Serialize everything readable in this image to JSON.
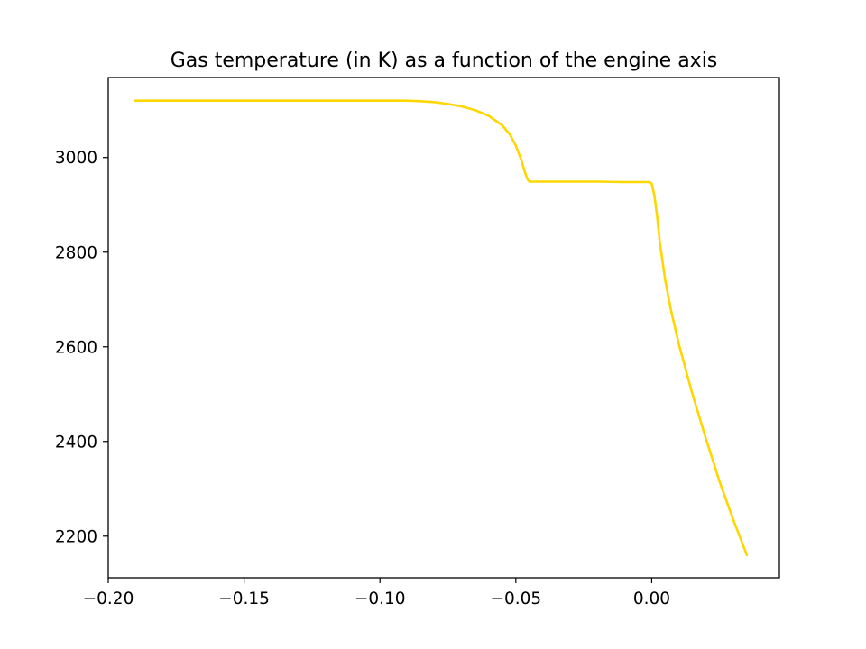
{
  "chart_data": {
    "type": "line",
    "title": "Gas temperature (in K) as a function of the engine axis",
    "xlabel": "",
    "ylabel": "",
    "xlim": [
      -0.2,
      0.047
    ],
    "ylim": [
      2112,
      3169
    ],
    "grid": false,
    "xticks": [
      {
        "value": -0.2,
        "label": "−0.20"
      },
      {
        "value": -0.15,
        "label": "−0.15"
      },
      {
        "value": -0.1,
        "label": "−0.10"
      },
      {
        "value": -0.05,
        "label": "−0.05"
      },
      {
        "value": 0.0,
        "label": "0.00"
      }
    ],
    "yticks": [
      {
        "value": 2200,
        "label": "2200"
      },
      {
        "value": 2400,
        "label": "2400"
      },
      {
        "value": 2600,
        "label": "2600"
      },
      {
        "value": 2800,
        "label": "2800"
      },
      {
        "value": 3000,
        "label": "3000"
      }
    ],
    "series": [
      {
        "color": "#FFD700",
        "x": [
          -0.19,
          -0.15,
          -0.12,
          -0.1,
          -0.09,
          -0.085,
          -0.08,
          -0.075,
          -0.07,
          -0.065,
          -0.06,
          -0.055,
          -0.052,
          -0.05,
          -0.048,
          -0.047,
          -0.046,
          -0.0455,
          -0.045,
          -0.044,
          -0.03,
          -0.02,
          -0.01,
          -0.001,
          0.0,
          0.001,
          0.002,
          0.003,
          0.005,
          0.007,
          0.01,
          0.015,
          0.02,
          0.025,
          0.03,
          0.035
        ],
        "y": [
          3120,
          3120,
          3120,
          3120,
          3120,
          3119,
          3117,
          3113,
          3108,
          3100,
          3088,
          3068,
          3047,
          3025,
          2995,
          2975,
          2958,
          2952,
          2949,
          2949,
          2949,
          2949,
          2948,
          2948,
          2945,
          2920,
          2875,
          2820,
          2740,
          2680,
          2605,
          2500,
          2405,
          2315,
          2235,
          2160
        ]
      }
    ]
  }
}
